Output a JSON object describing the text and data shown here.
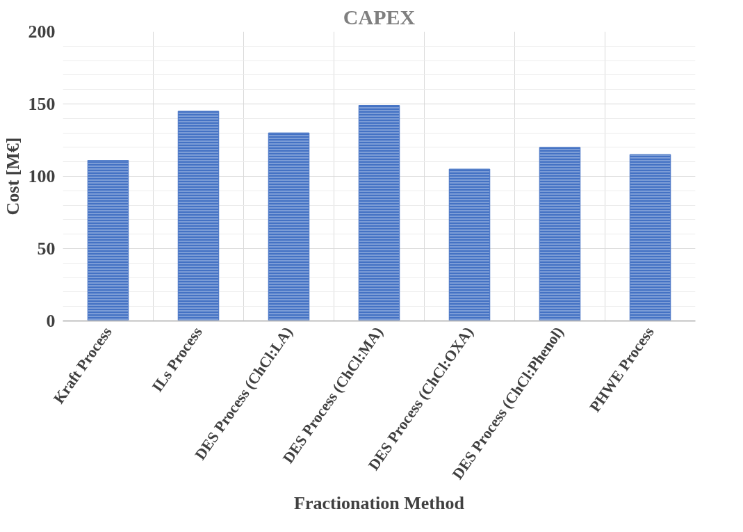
{
  "chart_data": {
    "type": "bar",
    "title": "CAPEX",
    "xlabel": "Fractionation Method",
    "ylabel": "Cost [M€]",
    "categories": [
      "Kraft Process",
      "ILs Process",
      "DES Process (ChCl:LA)",
      "DES Process (ChCl:MA)",
      "DES Process (ChCl:OXA)",
      "DES Process (ChCl:Phenol)",
      "PHWE Process"
    ],
    "values": [
      111,
      145,
      130,
      149,
      105,
      120,
      115
    ],
    "color": "#4472c4",
    "ylim": [
      0,
      200
    ],
    "yticks": [
      0,
      50,
      100,
      150,
      200
    ],
    "grid": true
  }
}
